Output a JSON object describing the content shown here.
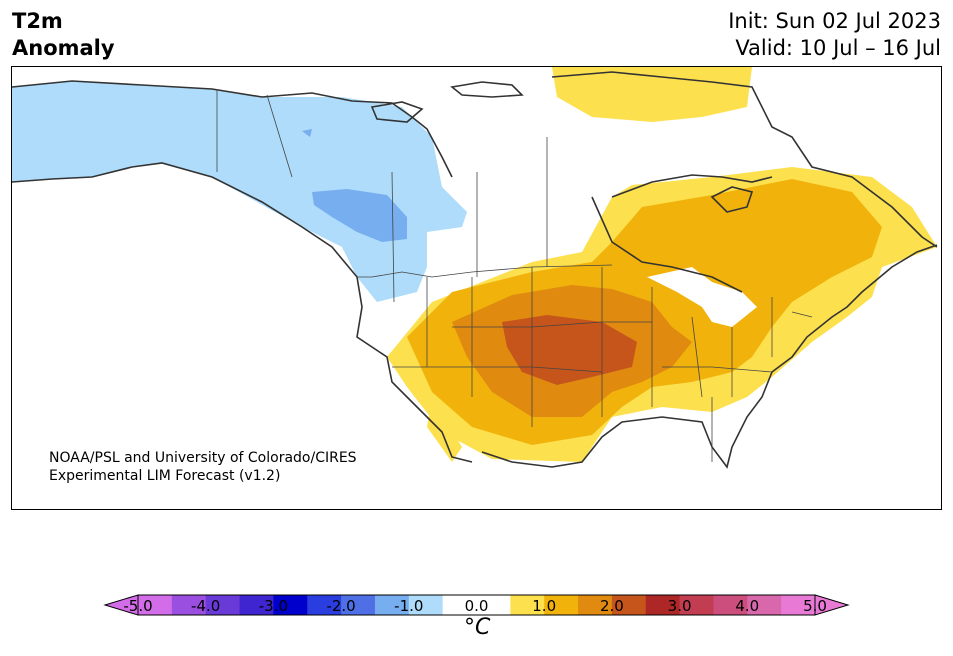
{
  "title": {
    "line1": "T2m",
    "line2": "Anomaly"
  },
  "forecast": {
    "init": "Init: Sun 02 Jul 2023",
    "valid": "Valid: 10 Jul – 16 Jul"
  },
  "credit": {
    "line1": "NOAA/PSL and University of Colorado/CIRES",
    "line2": "Experimental LIM Forecast (v1.2)"
  },
  "colorbar": {
    "unit": "°C",
    "ticks": [
      "-5.0",
      "-4.0",
      "-3.0",
      "-2.0",
      "-1.0",
      "0.0",
      "1.0",
      "2.0",
      "3.0",
      "4.0",
      "5.0"
    ],
    "colors": [
      "#d36ce8",
      "#9b4fe0",
      "#6a3ad9",
      "#3f25cf",
      "#0000cc",
      "#2a3ddf",
      "#4e6fe6",
      "#76aeef",
      "#aedcfa",
      "#ffffff",
      "#ffffff",
      "#fde04e",
      "#f1b30b",
      "#e08b10",
      "#c5551a",
      "#ad2727",
      "#c23d52",
      "#cc4e7c",
      "#d967ac",
      "#e87ad6"
    ]
  },
  "map_colors": {
    "cool1": "#aedcfa",
    "cool2": "#76aeef",
    "warm1": "#fde04e",
    "warm2": "#f1b30b",
    "warm3": "#e08b10",
    "warm4": "#c5551a"
  }
}
